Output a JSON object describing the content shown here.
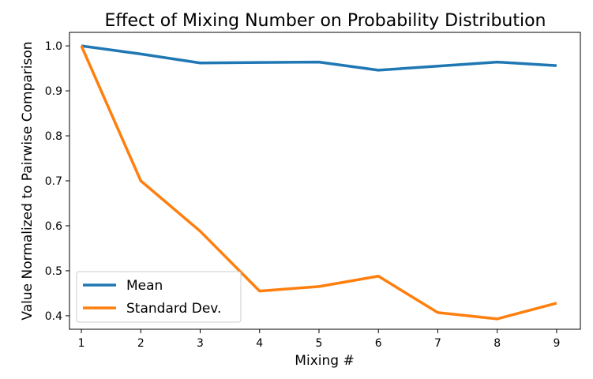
{
  "chart_data": {
    "type": "line",
    "title": "Effect of Mixing Number on Probability Distribution",
    "xlabel": "Mixing #",
    "ylabel": "Value Normalized to Pairwise Comparison",
    "x": [
      1,
      2,
      3,
      4,
      5,
      6,
      7,
      8,
      9
    ],
    "xlim": [
      0.8,
      9.4
    ],
    "ylim": [
      0.37,
      1.03
    ],
    "xticks": [
      1,
      2,
      3,
      4,
      5,
      6,
      7,
      8,
      9
    ],
    "xtick_labels": [
      "1",
      "2",
      "3",
      "4",
      "5",
      "6",
      "7",
      "8",
      "9"
    ],
    "yticks": [
      0.4,
      0.5,
      0.6,
      0.7,
      0.8,
      0.9,
      1.0
    ],
    "ytick_labels": [
      "0.4",
      "0.5",
      "0.6",
      "0.7",
      "0.8",
      "0.9",
      "1.0"
    ],
    "grid": false,
    "legend_position": "lower-left",
    "series": [
      {
        "name": "Mean",
        "color": "#1f77b4",
        "values": [
          1.0,
          0.982,
          0.962,
          0.963,
          0.964,
          0.946,
          0.955,
          0.964,
          0.956
        ]
      },
      {
        "name": "Standard Dev.",
        "color": "#ff7f0e",
        "values": [
          1.0,
          0.7,
          0.588,
          0.455,
          0.465,
          0.488,
          0.407,
          0.393,
          0.428
        ]
      }
    ]
  }
}
